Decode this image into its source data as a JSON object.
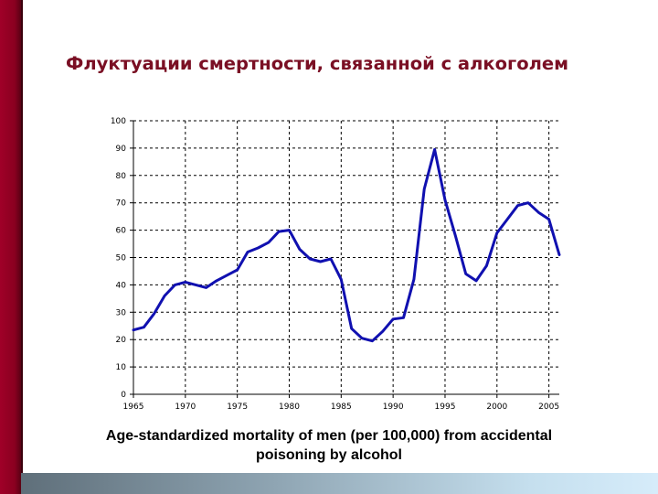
{
  "slide": {
    "title": "Флуктуации смертности, связанной с алкоголем",
    "caption_line1": "Age-standardized mortality of men (per 100,000) from accidental",
    "caption_line2": "poisoning by alcohol",
    "colors": {
      "title": "#7a0f24",
      "left_bar": "#8a0020",
      "line": "#1010b0",
      "bottom_bar_start": "#5f6f7a",
      "bottom_bar_end": "#d6ecfa"
    }
  },
  "chart_data": {
    "type": "line",
    "title": "Флуктуации смертности, связанной с алкоголем",
    "subtitle": "Age-standardized mortality of men (per 100,000) from accidental poisoning by alcohol",
    "xlabel": "",
    "ylabel": "",
    "xlim": [
      1965,
      2006
    ],
    "ylim": [
      0,
      100
    ],
    "x_ticks": [
      1965,
      1970,
      1975,
      1980,
      1985,
      1990,
      1995,
      2000,
      2005
    ],
    "y_ticks": [
      0,
      10,
      20,
      30,
      40,
      50,
      60,
      70,
      80,
      90,
      100
    ],
    "grid": true,
    "legend": null,
    "x": [
      1965,
      1966,
      1967,
      1968,
      1969,
      1970,
      1971,
      1972,
      1973,
      1974,
      1975,
      1976,
      1977,
      1978,
      1979,
      1980,
      1981,
      1982,
      1983,
      1984,
      1985,
      1986,
      1987,
      1988,
      1989,
      1990,
      1991,
      1992,
      1993,
      1994,
      1995,
      1996,
      1997,
      1998,
      1999,
      2000,
      2001,
      2002,
      2003,
      2004,
      2005,
      2006
    ],
    "series": [
      {
        "name": "Mortality of men per 100,000",
        "values": [
          23.5,
          24.5,
          29.5,
          36,
          40,
          41,
          40,
          39,
          41.5,
          43.5,
          45.5,
          52,
          53.5,
          55.5,
          59.5,
          60,
          53,
          49.5,
          48.5,
          49.5,
          42,
          24,
          20.5,
          19.5,
          23,
          27.5,
          28,
          42,
          75,
          89.5,
          71,
          58,
          44,
          41.5,
          47,
          59,
          64,
          69,
          70,
          66.5,
          64,
          51
        ]
      }
    ]
  }
}
